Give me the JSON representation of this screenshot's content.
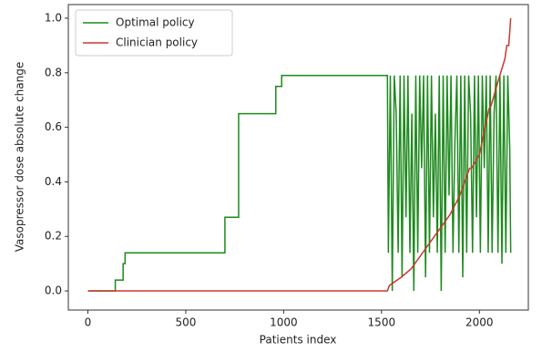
{
  "chart_data": {
    "type": "line",
    "xlabel": "Patients index",
    "ylabel": "Vasopressor dose absolute change",
    "xlim": [
      -100,
      2250
    ],
    "ylim": [
      -0.07,
      1.05
    ],
    "xticks": [
      0,
      500,
      1000,
      1500,
      2000
    ],
    "yticks": [
      {
        "value": 0,
        "label": "0.0"
      },
      0.2,
      0.4,
      0.6,
      0.8,
      {
        "value": 1,
        "label": "1.0"
      }
    ],
    "legend": "upper left",
    "series": [
      {
        "name": "Optimal policy",
        "color": "#1e8a1e",
        "x": [
          0,
          140,
          140,
          180,
          180,
          190,
          190,
          700,
          700,
          770,
          770,
          960,
          960,
          990,
          990,
          1530,
          1535,
          1545,
          1555,
          1565,
          1575,
          1585,
          1595,
          1605,
          1615,
          1625,
          1635,
          1645,
          1655,
          1665,
          1675,
          1685,
          1695,
          1705,
          1715,
          1725,
          1735,
          1745,
          1755,
          1765,
          1775,
          1785,
          1795,
          1805,
          1815,
          1825,
          1835,
          1845,
          1855,
          1865,
          1875,
          1885,
          1895,
          1905,
          1915,
          1925,
          1935,
          1945,
          1955,
          1965,
          1975,
          1985,
          1995,
          2005,
          2015,
          2025,
          2035,
          2045,
          2055,
          2065,
          2075,
          2085,
          2095,
          2105,
          2115,
          2125,
          2135,
          2145,
          2155,
          2160
        ],
        "values": [
          0,
          0,
          0.04,
          0.04,
          0.1,
          0.1,
          0.14,
          0.14,
          0.27,
          0.27,
          0.65,
          0.65,
          0.75,
          0.75,
          0.79,
          0.79,
          0.14,
          0.79,
          0.0,
          0.79,
          0.65,
          0.14,
          0.79,
          0.05,
          0.79,
          0.27,
          0.79,
          0.14,
          0.65,
          0.0,
          0.79,
          0.14,
          0.79,
          0.45,
          0.79,
          0.05,
          0.79,
          0.14,
          0.79,
          0.27,
          0.65,
          0.14,
          0.79,
          0.0,
          0.79,
          0.14,
          0.79,
          0.35,
          0.79,
          0.14,
          0.55,
          0.79,
          0.14,
          0.79,
          0.05,
          0.79,
          0.14,
          0.79,
          0.65,
          0.14,
          0.79,
          0.27,
          0.79,
          0.14,
          0.79,
          0.45,
          0.79,
          0.14,
          0.79,
          0.14,
          0.65,
          0.79,
          0.14,
          0.79,
          0.1,
          0.79,
          0.14,
          0.79,
          0.52,
          0.14
        ]
      },
      {
        "name": "Clinician policy",
        "color": "#c8382e",
        "x": [
          0,
          1530,
          1540,
          1600,
          1650,
          1700,
          1750,
          1800,
          1850,
          1900,
          1950,
          1960,
          2000,
          2050,
          2060,
          2100,
          2130,
          2140,
          2150,
          2160
        ],
        "values": [
          0,
          0,
          0.02,
          0.05,
          0.08,
          0.13,
          0.18,
          0.23,
          0.28,
          0.35,
          0.45,
          0.45,
          0.5,
          0.67,
          0.68,
          0.78,
          0.85,
          0.9,
          0.9,
          1.0
        ]
      }
    ]
  }
}
